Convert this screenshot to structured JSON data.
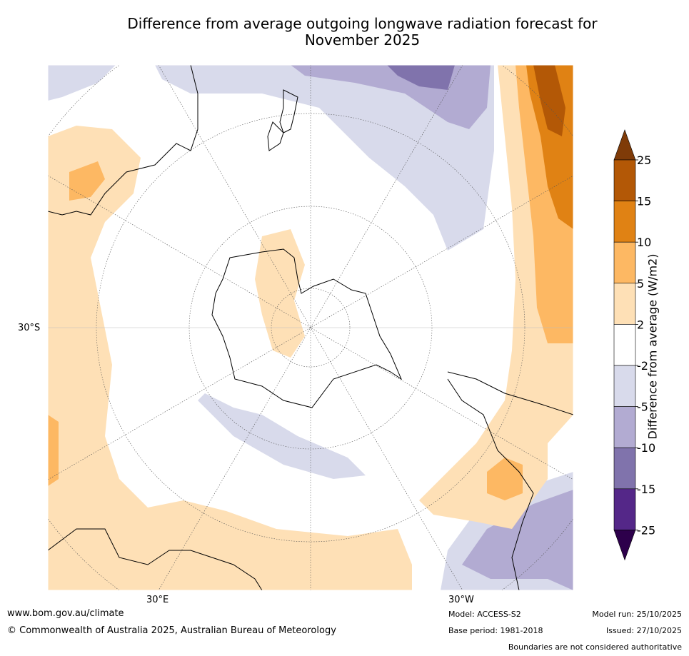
{
  "title_line1": "Difference from average outgoing longwave radiation forecast for",
  "title_line2": "November 2025",
  "map": {
    "lat_label": "30°S",
    "lon_label_left": "30°E",
    "lon_label_right": "30°W",
    "projection": "south-polar-stereographic"
  },
  "colorbar": {
    "label": "Difference from average (W/m2)",
    "ticks": [
      "25",
      "15",
      "10",
      "5",
      "2",
      "-2",
      "-5",
      "-10",
      "-15",
      "-25"
    ],
    "colors": [
      "#b35806",
      "#e08214",
      "#fdb863",
      "#fee0b6",
      "#ffffff",
      "#d8daeb",
      "#b2abd2",
      "#8073ac",
      "#542788"
    ],
    "extend_top_color": "#7f3b08",
    "extend_bottom_color": "#2d004b"
  },
  "footer": {
    "website": "www.bom.gov.au/climate",
    "copyright": "© Commonwealth of Australia 2025, Australian Bureau of Meteorology",
    "model": "Model: ACCESS-S2",
    "base_period": "Base period: 1981-2018",
    "model_run": "Model run: 25/10/2025",
    "issued": "Issued: 27/10/2025",
    "disclaimer": "Boundaries are not considered authoritative"
  }
}
